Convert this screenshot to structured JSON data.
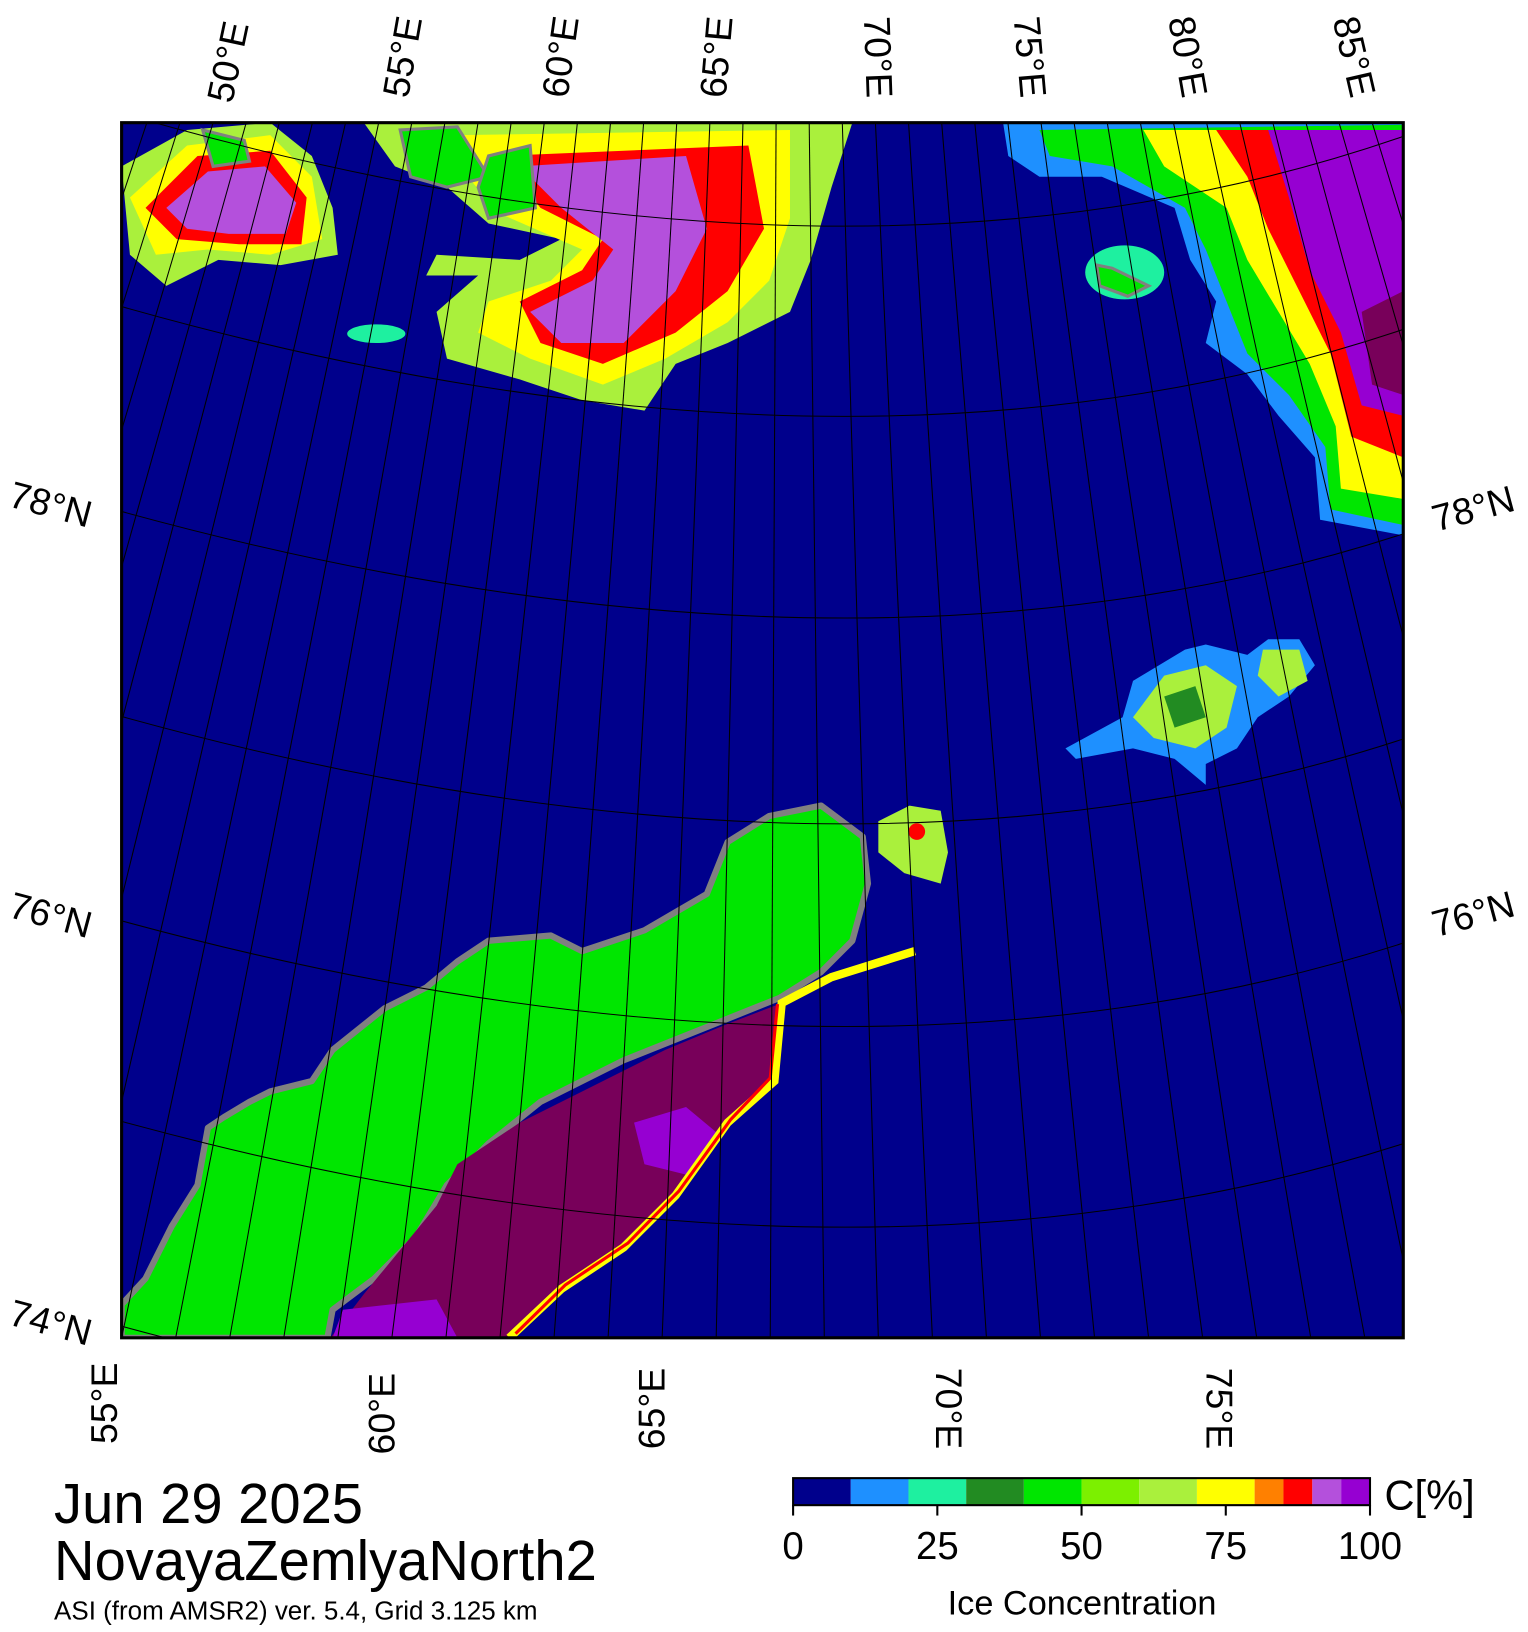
{
  "map": {
    "top_labels": [
      "50°E",
      "55°E",
      "60°E",
      "65°E",
      "70°E",
      "75°E",
      "80°E",
      "85°E"
    ],
    "bottom_labels": [
      "55°E",
      "60°E",
      "65°E",
      "70°E",
      "75°E"
    ],
    "left_labels": [
      "78°N",
      "76°N",
      "74°N"
    ],
    "right_labels": [
      "78°N",
      "76°N"
    ]
  },
  "caption": {
    "date": "Jun 29 2025",
    "region": "NovayaZemlyaNorth2",
    "source": "ASI (from AMSR2) ver. 5.4,  Grid 3.125 km"
  },
  "colorbar": {
    "label": "Ice Concentration",
    "unit": "C[%]",
    "range": [
      0,
      100
    ],
    "ticks": [
      0,
      25,
      50,
      75,
      100
    ],
    "bounds": [
      0,
      10,
      20,
      30,
      40,
      50,
      60,
      70,
      80,
      85,
      90,
      95,
      100
    ],
    "colors": [
      "#00008c",
      "#1e90ff",
      "#1ef0a0",
      "#228b22",
      "#00e600",
      "#7cf000",
      "#aaf03c",
      "#ffff00",
      "#ff8000",
      "#ff0000",
      "#b450dc",
      "#9600d2"
    ]
  }
}
